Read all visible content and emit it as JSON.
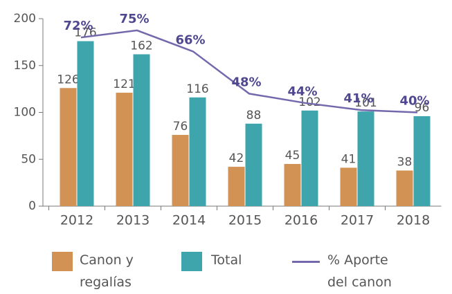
{
  "chart_data": {
    "type": "bar_line",
    "categories": [
      "2012",
      "2013",
      "2014",
      "2015",
      "2016",
      "2017",
      "2018"
    ],
    "series": [
      {
        "name": "Canon y regalías",
        "color": "#d29254",
        "values": [
          126,
          121,
          76,
          42,
          45,
          41,
          38
        ]
      },
      {
        "name": "Total",
        "color": "#3ea5ac",
        "values": [
          176,
          162,
          116,
          88,
          102,
          101,
          96
        ]
      },
      {
        "name": "% Aporte del canon",
        "color": "#7468ac",
        "axis": "y2",
        "values": [
          72,
          75,
          66,
          48,
          44,
          41,
          40
        ],
        "value_labels": [
          "72%",
          "75%",
          "66%",
          "48%",
          "44%",
          "41%",
          "40%"
        ]
      }
    ],
    "ylim": [
      0,
      200
    ],
    "yticks": [
      0,
      50,
      100,
      150,
      200
    ],
    "y2lim": [
      0,
      80
    ]
  }
}
